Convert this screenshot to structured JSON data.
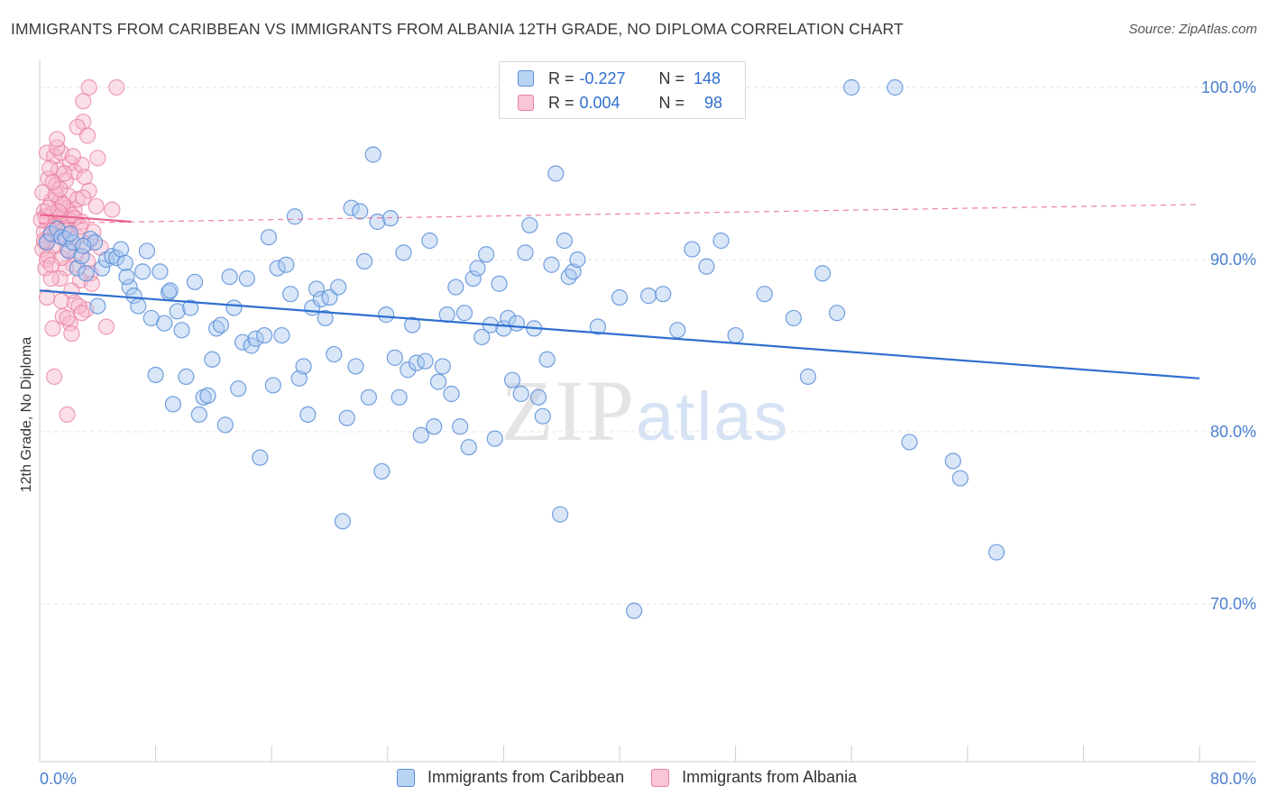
{
  "header": {
    "title": "IMMIGRANTS FROM CARIBBEAN VS IMMIGRANTS FROM ALBANIA 12TH GRADE, NO DIPLOMA CORRELATION CHART",
    "source": "Source: ZipAtlas.com"
  },
  "watermark": {
    "zip": "ZIP",
    "atlas": "atlas"
  },
  "legend": {
    "rows": [
      {
        "r_label": "R =",
        "r_value": "-0.227",
        "n_label": "N =",
        "n_value": "148"
      },
      {
        "r_label": "R =",
        "r_value": "0.004",
        "n_label": "N =",
        "n_value": "98"
      }
    ]
  },
  "colors": {
    "caribbean_fill": "#a9c8ef",
    "caribbean_stroke": "#5b8fd8",
    "caribbean_line": "#2f6fd0",
    "albania_fill": "#f7b8cb",
    "albania_stroke": "#e87fa0",
    "albania_line": "#e8628c"
  },
  "chart_data": {
    "type": "scatter",
    "title": "IMMIGRANTS FROM CARIBBEAN VS IMMIGRANTS FROM ALBANIA 12TH GRADE, NO DIPLOMA CORRELATION CHART",
    "xlabel": "",
    "ylabel": "12th Grade, No Diploma",
    "xlim": [
      0,
      80
    ],
    "ylim": [
      60,
      101.5
    ],
    "x_tick_labels": [
      "0.0%",
      "80.0%"
    ],
    "y_ticks": [
      70,
      80,
      90,
      100
    ],
    "y_tick_labels": [
      "70.0%",
      "80.0%",
      "90.0%",
      "100.0%"
    ],
    "grid": "horizontal dashed",
    "legend_position": "top-center",
    "series": [
      {
        "name": "Immigrants from Caribbean",
        "trend": {
          "x": [
            0,
            80
          ],
          "y": [
            88.2,
            83.1
          ]
        },
        "points": [
          [
            0.5,
            91.0
          ],
          [
            0.8,
            91.5
          ],
          [
            1.2,
            91.8
          ],
          [
            1.5,
            91.3
          ],
          [
            1.8,
            91.2
          ],
          [
            2.0,
            90.5
          ],
          [
            2.3,
            91.0
          ],
          [
            2.6,
            89.5
          ],
          [
            2.9,
            90.2
          ],
          [
            3.2,
            89.2
          ],
          [
            3.5,
            91.2
          ],
          [
            3.8,
            91.0
          ],
          [
            4.0,
            87.3
          ],
          [
            4.3,
            89.5
          ],
          [
            4.6,
            90.0
          ],
          [
            5.0,
            90.2
          ],
          [
            5.3,
            90.1
          ],
          [
            5.6,
            90.6
          ],
          [
            5.9,
            89.8
          ],
          [
            6.2,
            88.4
          ],
          [
            6.5,
            87.9
          ],
          [
            6.8,
            87.3
          ],
          [
            7.1,
            89.3
          ],
          [
            7.4,
            90.5
          ],
          [
            7.7,
            86.6
          ],
          [
            8.0,
            83.3
          ],
          [
            8.3,
            89.3
          ],
          [
            8.6,
            86.3
          ],
          [
            8.9,
            88.1
          ],
          [
            9.2,
            81.6
          ],
          [
            9.5,
            87.0
          ],
          [
            9.8,
            85.9
          ],
          [
            10.1,
            83.2
          ],
          [
            10.4,
            87.2
          ],
          [
            10.7,
            88.7
          ],
          [
            11.0,
            81.0
          ],
          [
            11.3,
            82.0
          ],
          [
            11.6,
            82.1
          ],
          [
            11.9,
            84.2
          ],
          [
            12.2,
            86.0
          ],
          [
            12.5,
            86.2
          ],
          [
            12.8,
            80.4
          ],
          [
            13.1,
            89.0
          ],
          [
            13.4,
            87.2
          ],
          [
            13.7,
            82.5
          ],
          [
            14.0,
            85.2
          ],
          [
            14.3,
            88.9
          ],
          [
            14.6,
            85.0
          ],
          [
            14.9,
            85.4
          ],
          [
            15.2,
            78.5
          ],
          [
            15.5,
            85.6
          ],
          [
            15.8,
            91.3
          ],
          [
            16.1,
            82.7
          ],
          [
            16.4,
            89.5
          ],
          [
            16.7,
            85.6
          ],
          [
            17.0,
            89.7
          ],
          [
            17.3,
            88.0
          ],
          [
            17.6,
            92.5
          ],
          [
            17.9,
            83.1
          ],
          [
            18.2,
            83.8
          ],
          [
            18.5,
            81.0
          ],
          [
            18.8,
            87.2
          ],
          [
            19.1,
            88.3
          ],
          [
            19.4,
            87.7
          ],
          [
            19.7,
            86.6
          ],
          [
            20.0,
            87.8
          ],
          [
            20.3,
            84.5
          ],
          [
            20.6,
            88.4
          ],
          [
            20.9,
            74.8
          ],
          [
            21.2,
            80.8
          ],
          [
            21.5,
            93.0
          ],
          [
            21.8,
            83.8
          ],
          [
            22.1,
            92.8
          ],
          [
            22.4,
            89.9
          ],
          [
            22.7,
            82.0
          ],
          [
            23.0,
            96.1
          ],
          [
            23.3,
            92.2
          ],
          [
            23.6,
            77.7
          ],
          [
            23.9,
            86.8
          ],
          [
            24.2,
            92.4
          ],
          [
            24.5,
            84.3
          ],
          [
            24.8,
            82.0
          ],
          [
            25.1,
            90.4
          ],
          [
            25.4,
            83.6
          ],
          [
            25.7,
            86.2
          ],
          [
            26.0,
            84.0
          ],
          [
            26.3,
            79.8
          ],
          [
            26.6,
            84.1
          ],
          [
            26.9,
            91.1
          ],
          [
            27.2,
            80.3
          ],
          [
            27.5,
            82.9
          ],
          [
            27.8,
            83.8
          ],
          [
            28.1,
            86.8
          ],
          [
            28.4,
            82.2
          ],
          [
            28.7,
            88.4
          ],
          [
            29.0,
            80.3
          ],
          [
            29.3,
            86.9
          ],
          [
            29.6,
            79.1
          ],
          [
            29.9,
            88.9
          ],
          [
            30.2,
            89.5
          ],
          [
            30.5,
            85.5
          ],
          [
            30.8,
            90.3
          ],
          [
            31.1,
            86.2
          ],
          [
            31.4,
            79.6
          ],
          [
            31.7,
            88.6
          ],
          [
            32.0,
            86.0
          ],
          [
            32.3,
            86.6
          ],
          [
            32.6,
            83.0
          ],
          [
            32.9,
            86.3
          ],
          [
            33.2,
            82.2
          ],
          [
            33.5,
            90.4
          ],
          [
            33.8,
            92.0
          ],
          [
            34.1,
            86.0
          ],
          [
            34.4,
            82.0
          ],
          [
            34.7,
            80.9
          ],
          [
            35.0,
            84.2
          ],
          [
            35.3,
            89.7
          ],
          [
            35.6,
            95.0
          ],
          [
            35.9,
            75.2
          ],
          [
            36.2,
            91.1
          ],
          [
            36.5,
            89.0
          ],
          [
            36.8,
            89.3
          ],
          [
            37.1,
            90.0
          ],
          [
            38.5,
            86.1
          ],
          [
            40.0,
            87.8
          ],
          [
            41.0,
            69.6
          ],
          [
            42.0,
            87.9
          ],
          [
            43.0,
            88.0
          ],
          [
            44.0,
            85.9
          ],
          [
            45.0,
            90.6
          ],
          [
            46.0,
            89.6
          ],
          [
            47.0,
            91.1
          ],
          [
            48.0,
            85.6
          ],
          [
            50.0,
            88.0
          ],
          [
            52.0,
            86.6
          ],
          [
            53.0,
            83.2
          ],
          [
            54.0,
            89.2
          ],
          [
            55.0,
            86.9
          ],
          [
            56.0,
            100.0
          ],
          [
            59.0,
            100.0
          ],
          [
            60.0,
            79.4
          ],
          [
            63.0,
            78.3
          ],
          [
            63.5,
            77.3
          ],
          [
            66.0,
            73.0
          ],
          [
            2.1,
            91.5
          ],
          [
            3.0,
            90.8
          ],
          [
            6.0,
            89.0
          ],
          [
            9.0,
            88.2
          ]
        ]
      },
      {
        "name": "Immigrants from Albania",
        "trend": {
          "x": [
            0,
            6.3
          ],
          "y": [
            92.6,
            92.2
          ],
          "extended": {
            "x": [
              0,
              80
            ],
            "y": [
              92.1,
              93.2
            ]
          }
        },
        "points": [
          [
            3.4,
            100.0
          ],
          [
            5.3,
            100.0
          ],
          [
            3.0,
            99.2
          ],
          [
            3.0,
            98.0
          ],
          [
            2.6,
            97.7
          ],
          [
            3.3,
            97.2
          ],
          [
            0.5,
            96.2
          ],
          [
            1.0,
            96.0
          ],
          [
            1.5,
            96.2
          ],
          [
            2.1,
            95.6
          ],
          [
            1.3,
            95.2
          ],
          [
            2.4,
            95.1
          ],
          [
            0.6,
            94.7
          ],
          [
            1.1,
            94.3
          ],
          [
            2.0,
            93.7
          ],
          [
            3.4,
            94.0
          ],
          [
            0.8,
            93.4
          ],
          [
            1.4,
            93.4
          ],
          [
            1.9,
            93.0
          ],
          [
            2.4,
            92.9
          ],
          [
            0.3,
            92.8
          ],
          [
            0.9,
            92.7
          ],
          [
            1.2,
            92.5
          ],
          [
            1.7,
            92.5
          ],
          [
            2.2,
            92.6
          ],
          [
            0.5,
            92.2
          ],
          [
            1.0,
            92.0
          ],
          [
            1.6,
            92.1
          ],
          [
            2.9,
            92.2
          ],
          [
            5.0,
            92.9
          ],
          [
            0.3,
            91.6
          ],
          [
            0.7,
            91.4
          ],
          [
            1.3,
            91.4
          ],
          [
            2.0,
            91.7
          ],
          [
            2.6,
            91.3
          ],
          [
            0.4,
            91.0
          ],
          [
            1.1,
            90.8
          ],
          [
            0.2,
            90.6
          ],
          [
            0.6,
            90.2
          ],
          [
            2.3,
            89.7
          ],
          [
            3.2,
            90.9
          ],
          [
            1.8,
            89.5
          ],
          [
            3.5,
            89.2
          ],
          [
            1.4,
            88.9
          ],
          [
            2.8,
            88.8
          ],
          [
            3.6,
            88.6
          ],
          [
            0.5,
            87.8
          ],
          [
            2.4,
            87.5
          ],
          [
            3.2,
            87.1
          ],
          [
            2.7,
            87.3
          ],
          [
            1.6,
            86.7
          ],
          [
            2.1,
            86.3
          ],
          [
            1.9,
            86.6
          ],
          [
            0.9,
            86.0
          ],
          [
            2.2,
            85.7
          ],
          [
            4.6,
            86.1
          ],
          [
            1.0,
            83.2
          ],
          [
            1.9,
            81.0
          ],
          [
            0.4,
            89.5
          ],
          [
            0.8,
            88.9
          ],
          [
            1.5,
            90.1
          ],
          [
            2.5,
            90.3
          ],
          [
            0.2,
            93.9
          ],
          [
            0.7,
            95.3
          ],
          [
            1.8,
            94.6
          ],
          [
            2.9,
            95.5
          ],
          [
            1.2,
            96.5
          ],
          [
            3.9,
            93.1
          ],
          [
            2.6,
            93.5
          ],
          [
            1.1,
            93.8
          ],
          [
            0.4,
            92.5
          ],
          [
            1.6,
            93.2
          ],
          [
            2.0,
            92.3
          ],
          [
            0.9,
            91.9
          ],
          [
            1.3,
            92.8
          ],
          [
            1.7,
            91.8
          ],
          [
            2.4,
            92.4
          ],
          [
            0.6,
            93.0
          ],
          [
            0.1,
            92.3
          ],
          [
            2.8,
            91.9
          ],
          [
            1.4,
            94.1
          ],
          [
            3.0,
            93.6
          ],
          [
            0.5,
            90.0
          ],
          [
            1.9,
            90.6
          ],
          [
            3.7,
            91.6
          ],
          [
            4.2,
            90.7
          ],
          [
            2.2,
            88.2
          ],
          [
            0.8,
            89.7
          ],
          [
            1.5,
            87.6
          ],
          [
            3.3,
            89.9
          ],
          [
            2.9,
            86.9
          ],
          [
            0.3,
            91.1
          ],
          [
            4.0,
            95.9
          ],
          [
            1.7,
            95.0
          ],
          [
            0.9,
            94.5
          ],
          [
            2.3,
            96.0
          ],
          [
            3.1,
            94.8
          ],
          [
            1.2,
            97.0
          ]
        ]
      }
    ]
  },
  "bottom_legend": {
    "caribbean": "Immigrants from Caribbean",
    "albania": "Immigrants from Albania"
  }
}
